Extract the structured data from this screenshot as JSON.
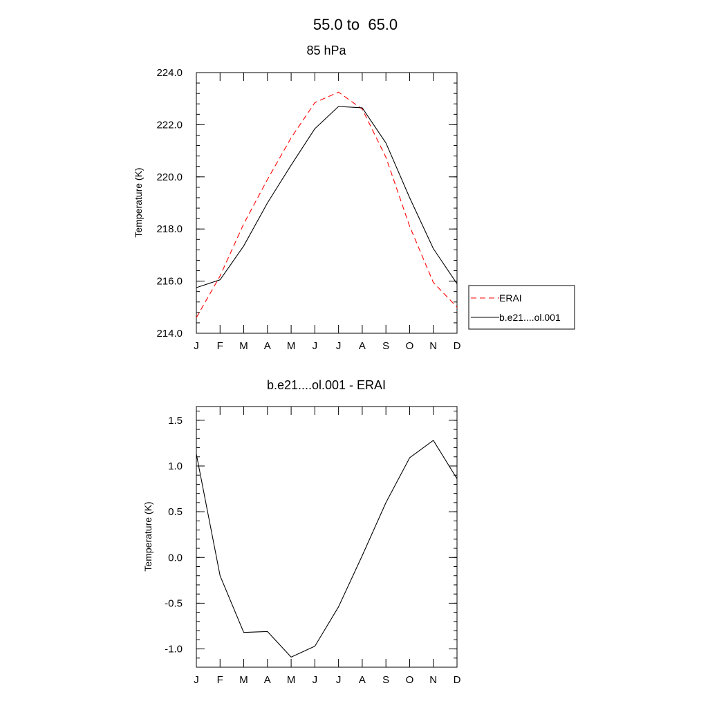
{
  "figure": {
    "title": "55.0 to  65.0"
  },
  "chart_data": [
    {
      "type": "line",
      "title": "85 hPa",
      "xlabel": "",
      "ylabel": "Temperature (K)",
      "categories": [
        "J",
        "F",
        "M",
        "A",
        "M",
        "J",
        "J",
        "A",
        "S",
        "O",
        "N",
        "D"
      ],
      "ylim": [
        214.0,
        224.0
      ],
      "yticks": [
        "214.0",
        "216.0",
        "218.0",
        "220.0",
        "222.0",
        "224.0"
      ],
      "legend": "right",
      "series": [
        {
          "name": "ERAI",
          "color": "#ff0000",
          "style": "dashed",
          "values": [
            214.6,
            216.2,
            218.2,
            219.9,
            221.5,
            222.85,
            223.25,
            222.6,
            220.75,
            218.1,
            215.95,
            215.0
          ]
        },
        {
          "name": "b.e21....ol.001",
          "color": "#000000",
          "style": "solid",
          "values": [
            215.75,
            216.05,
            217.35,
            219.0,
            220.45,
            221.85,
            222.7,
            222.65,
            221.3,
            219.2,
            217.25,
            215.9
          ]
        }
      ]
    },
    {
      "type": "line",
      "title": "b.e21....ol.001 - ERAI",
      "xlabel": "",
      "ylabel": "Temperature (K)",
      "categories": [
        "J",
        "F",
        "M",
        "A",
        "M",
        "J",
        "J",
        "A",
        "S",
        "O",
        "N",
        "D"
      ],
      "ylim": [
        -1.2,
        1.65
      ],
      "yticks": [
        "-1.0",
        "-0.5",
        "0.0",
        "0.5",
        "1.0",
        "1.5"
      ],
      "series": [
        {
          "color": "#000000",
          "style": "solid",
          "values": [
            1.13,
            -0.2,
            -0.82,
            -0.81,
            -1.09,
            -0.97,
            -0.54,
            0.02,
            0.6,
            1.09,
            1.28,
            0.86
          ]
        }
      ]
    }
  ]
}
